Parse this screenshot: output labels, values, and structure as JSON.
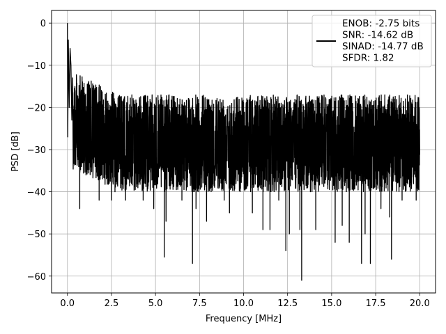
{
  "chart_data": {
    "type": "line",
    "xlabel": "Frequency [MHz]",
    "ylabel": "PSD [dB]",
    "xlim": [
      -0.9,
      20.9
    ],
    "ylim": [
      -64,
      3
    ],
    "x_ticks": [
      0.0,
      2.5,
      5.0,
      7.5,
      10.0,
      12.5,
      15.0,
      17.5,
      20.0
    ],
    "x_tick_labels": [
      "0.0",
      "2.5",
      "5.0",
      "7.5",
      "10.0",
      "12.5",
      "15.0",
      "17.5",
      "20.0"
    ],
    "y_ticks": [
      0,
      -10,
      -20,
      -30,
      -40,
      -50,
      -60
    ],
    "y_tick_labels": [
      "0",
      "−10",
      "−20",
      "−30",
      "−40",
      "−50",
      "−60"
    ],
    "grid": true,
    "legend_position": "top-right",
    "legend_lines": [
      "ENOB: -2.75 bits",
      "SNR: -14.62 dB",
      "SINAD: -14.77 dB",
      "SFDR: 1.82"
    ],
    "line_color": "#000000",
    "series": [
      {
        "x_start": 0.0,
        "x_end": 20.0,
        "peak_points": [
          [
            0.0,
            0
          ],
          [
            0.02,
            -27
          ],
          [
            0.05,
            -4
          ],
          [
            0.1,
            -20
          ],
          [
            0.15,
            -6
          ],
          [
            0.2,
            -10
          ],
          [
            0.25,
            -23
          ],
          [
            0.3,
            -13
          ]
        ],
        "deep_nulls": [
          [
            0.7,
            -44
          ],
          [
            1.8,
            -42
          ],
          [
            2.5,
            -42
          ],
          [
            2.7,
            -40
          ],
          [
            3.3,
            -42
          ],
          [
            4.3,
            -42
          ],
          [
            4.9,
            -44
          ],
          [
            5.5,
            -55.5
          ],
          [
            5.6,
            -47
          ],
          [
            6.5,
            -42
          ],
          [
            7.1,
            -57
          ],
          [
            7.3,
            -44
          ],
          [
            7.9,
            -47
          ],
          [
            8.9,
            -42
          ],
          [
            9.2,
            -45
          ],
          [
            10.5,
            -45
          ],
          [
            11.1,
            -49
          ],
          [
            11.5,
            -49
          ],
          [
            12.0,
            -42
          ],
          [
            12.4,
            -54
          ],
          [
            12.6,
            -50
          ],
          [
            13.2,
            -49
          ],
          [
            13.3,
            -61
          ],
          [
            14.1,
            -49
          ],
          [
            15.2,
            -52
          ],
          [
            15.6,
            -48
          ],
          [
            16.0,
            -52
          ],
          [
            16.7,
            -57
          ],
          [
            16.9,
            -50
          ],
          [
            17.2,
            -57
          ],
          [
            17.8,
            -44
          ],
          [
            18.3,
            -46
          ],
          [
            18.4,
            -56
          ],
          [
            19.0,
            -42
          ],
          [
            19.8,
            -42
          ]
        ],
        "typical_range_db": [
          -35,
          -17
        ]
      }
    ]
  }
}
